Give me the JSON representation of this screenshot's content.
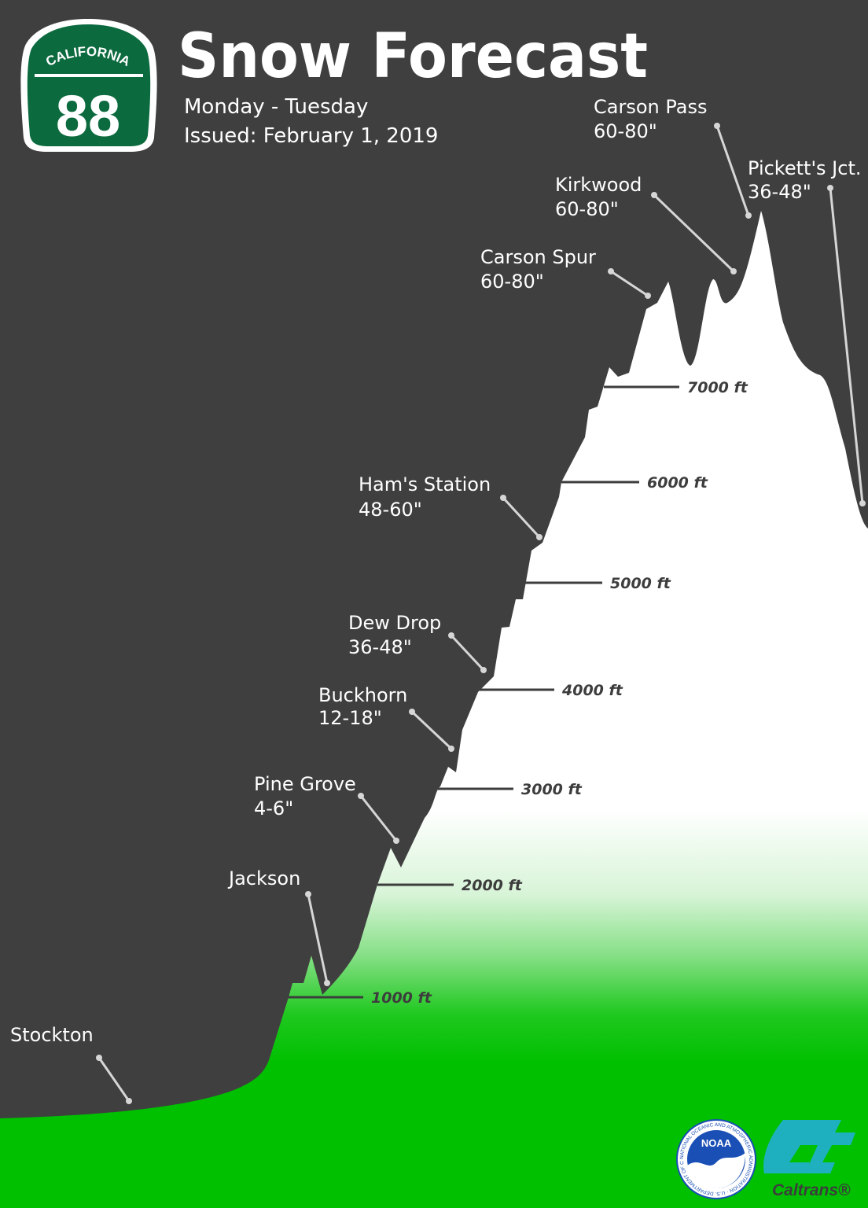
{
  "header": {
    "title": "Snow Forecast",
    "days": "Monday - Tuesday",
    "issued": "Issued: February 1, 2019"
  },
  "route_shield": {
    "state": "CALIFORNIA",
    "number": "88",
    "color": "#0c6a3f"
  },
  "locations": [
    {
      "name": "Stockton",
      "snow": ""
    },
    {
      "name": "Jackson",
      "snow": ""
    },
    {
      "name": "Pine Grove",
      "snow": "4-6\""
    },
    {
      "name": "Buckhorn",
      "snow": "12-18\""
    },
    {
      "name": "Dew Drop",
      "snow": "36-48\""
    },
    {
      "name": "Ham's Station",
      "snow": "48-60\""
    },
    {
      "name": "Carson Spur",
      "snow": "60-80\""
    },
    {
      "name": "Kirkwood",
      "snow": "60-80\""
    },
    {
      "name": "Carson Pass",
      "snow": "60-80\""
    },
    {
      "name": "Pickett's Jct.",
      "snow": "36-48\""
    }
  ],
  "elevations": [
    "1000 ft",
    "2000 ft",
    "3000 ft",
    "4000 ft",
    "5000 ft",
    "6000 ft",
    "7000 ft"
  ],
  "logos": {
    "noaa": {
      "text": "NOAA",
      "ring_text": "NATIONAL OCEANIC AND ATMOSPHERIC ADMINISTRATION · U.S. DEPARTMENT OF COMMERCE"
    },
    "caltrans": {
      "text": "Caltrans®"
    }
  },
  "colors": {
    "background": "#3f3f3f",
    "snow": "#ffffff",
    "valley_green": "#00c000",
    "leader": "#d6d6d6",
    "noaa_blue": "#1a4fb5",
    "caltrans_teal": "#1fb0c0"
  }
}
